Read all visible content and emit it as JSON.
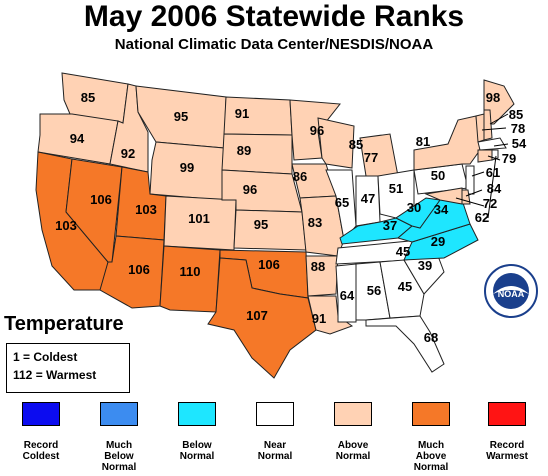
{
  "title": "May 2006 Statewide Ranks",
  "subtitle": "National Climatic Data Center/NESDIS/NOAA",
  "variable_label": "Temperature",
  "key": {
    "coldest": "1 = Coldest",
    "warmest": "112 = Warmest"
  },
  "legend": [
    {
      "label": "Record\nColdest",
      "color": "#0c0cf0"
    },
    {
      "label": "Much\nBelow\nNormal",
      "color": "#3c8cf0"
    },
    {
      "label": "Below\nNormal",
      "color": "#1ee6ff"
    },
    {
      "label": "Near\nNormal",
      "color": "#ffffff"
    },
    {
      "label": "Above\nNormal",
      "color": "#ffd2b4"
    },
    {
      "label": "Much\nAbove\nNormal",
      "color": "#f57828"
    },
    {
      "label": "Record\nWarmest",
      "color": "#ff1414"
    }
  ],
  "logo_text": "NOAA",
  "states": [
    {
      "name": "WA",
      "rank": "85",
      "category": "Above Normal"
    },
    {
      "name": "OR",
      "rank": "94",
      "category": "Above Normal"
    },
    {
      "name": "ID",
      "rank": "92",
      "category": "Above Normal"
    },
    {
      "name": "MT",
      "rank": "95",
      "category": "Above Normal"
    },
    {
      "name": "WY",
      "rank": "99",
      "category": "Above Normal"
    },
    {
      "name": "CA",
      "rank": "103",
      "category": "Much Above Normal"
    },
    {
      "name": "NV",
      "rank": "106",
      "category": "Much Above Normal"
    },
    {
      "name": "UT",
      "rank": "103",
      "category": "Much Above Normal"
    },
    {
      "name": "CO",
      "rank": "101",
      "category": "Above Normal"
    },
    {
      "name": "AZ",
      "rank": "106",
      "category": "Much Above Normal"
    },
    {
      "name": "NM",
      "rank": "110",
      "category": "Much Above Normal"
    },
    {
      "name": "ND",
      "rank": "91",
      "category": "Above Normal"
    },
    {
      "name": "SD",
      "rank": "89",
      "category": "Above Normal"
    },
    {
      "name": "NE",
      "rank": "96",
      "category": "Above Normal"
    },
    {
      "name": "KS",
      "rank": "95",
      "category": "Above Normal"
    },
    {
      "name": "OK",
      "rank": "106",
      "category": "Much Above Normal"
    },
    {
      "name": "TX",
      "rank": "107",
      "category": "Much Above Normal"
    },
    {
      "name": "MN",
      "rank": "96",
      "category": "Above Normal"
    },
    {
      "name": "IA",
      "rank": "86",
      "category": "Above Normal"
    },
    {
      "name": "MO",
      "rank": "83",
      "category": "Above Normal"
    },
    {
      "name": "AR",
      "rank": "88",
      "category": "Above Normal"
    },
    {
      "name": "LA",
      "rank": "91",
      "category": "Above Normal"
    },
    {
      "name": "WI",
      "rank": "85",
      "category": "Above Normal"
    },
    {
      "name": "MI",
      "rank": "77",
      "category": "Above Normal"
    },
    {
      "name": "IL",
      "rank": "65",
      "category": "Near Normal"
    },
    {
      "name": "IN",
      "rank": "47",
      "category": "Near Normal"
    },
    {
      "name": "OH",
      "rank": "51",
      "category": "Near Normal"
    },
    {
      "name": "KY",
      "rank": "37",
      "category": "Below Normal"
    },
    {
      "name": "TN",
      "rank": "45",
      "category": "Near Normal"
    },
    {
      "name": "MS",
      "rank": "64",
      "category": "Near Normal"
    },
    {
      "name": "AL",
      "rank": "56",
      "category": "Near Normal"
    },
    {
      "name": "GA",
      "rank": "45",
      "category": "Near Normal"
    },
    {
      "name": "FL",
      "rank": "68",
      "category": "Near Normal"
    },
    {
      "name": "SC",
      "rank": "39",
      "category": "Near Normal"
    },
    {
      "name": "NC",
      "rank": "29",
      "category": "Below Normal"
    },
    {
      "name": "VA",
      "rank": "34",
      "category": "Below Normal"
    },
    {
      "name": "WV",
      "rank": "30",
      "category": "Below Normal"
    },
    {
      "name": "PA",
      "rank": "50",
      "category": "Near Normal"
    },
    {
      "name": "NY",
      "rank": "81",
      "category": "Above Normal"
    },
    {
      "name": "ME",
      "rank": "98",
      "category": "Above Normal"
    },
    {
      "name": "NH",
      "rank": "85",
      "category": "Above Normal"
    },
    {
      "name": "VT",
      "rank": "78",
      "category": "Above Normal"
    },
    {
      "name": "MA",
      "rank": "54",
      "category": "Near Normal"
    },
    {
      "name": "CT",
      "rank": "79",
      "category": "Above Normal"
    },
    {
      "name": "NJ",
      "rank": "61",
      "category": "Near Normal"
    },
    {
      "name": "DE",
      "rank": "84",
      "category": "Above Normal"
    },
    {
      "name": "MD",
      "rank": "72",
      "category": "Above Normal"
    },
    {
      "name": "RI",
      "rank": "62",
      "category": "Near Normal"
    }
  ]
}
